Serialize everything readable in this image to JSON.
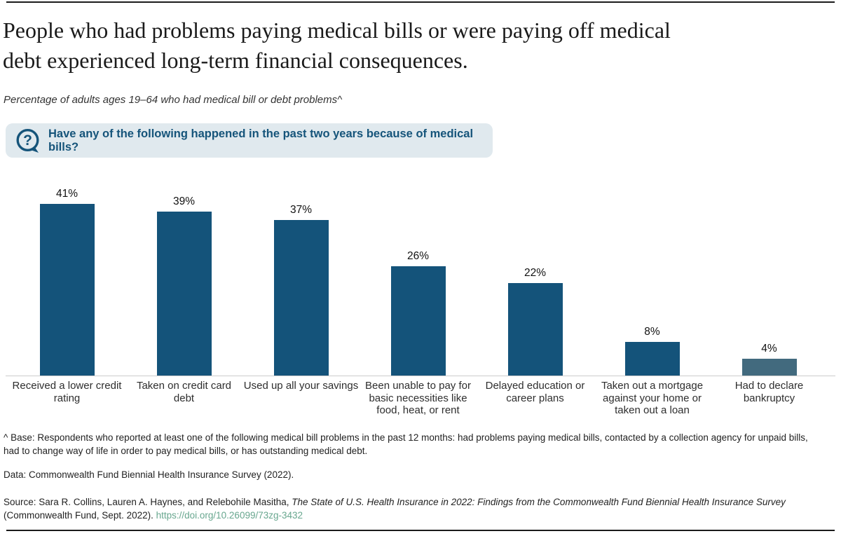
{
  "header": {
    "title_lines": [
      "People who had problems paying medical bills or were paying off medical",
      "debt experienced long-term financial consequences."
    ],
    "subtitle": "Percentage of adults ages 19–64 who had medical bill or debt problems^"
  },
  "banner": {
    "question": "Have any of the following happened in the past two years because of medical bills?",
    "icon": "question-speech-bubble-icon",
    "text_color": "#15547a",
    "background_color": "#e0e9ee"
  },
  "chart_data": {
    "type": "bar",
    "title": "",
    "xlabel": "",
    "ylabel": "",
    "categories": [
      "Received a lower credit rating",
      "Taken on credit card debt",
      "Used up all your savings",
      "Been unable to pay for basic necessities like food, heat, or rent",
      "Delayed education or career plans",
      "Taken out a mortgage against your home or taken out a loan",
      "Had to declare bankruptcy"
    ],
    "values": [
      41,
      39,
      37,
      26,
      22,
      8,
      4
    ],
    "value_labels": [
      "41%",
      "39%",
      "37%",
      "26%",
      "22%",
      "8%",
      "4%"
    ],
    "bar_colors": [
      "#14537a",
      "#14537a",
      "#14537a",
      "#14537a",
      "#14537a",
      "#14537a",
      "#426a7e"
    ],
    "ylim": [
      0,
      45
    ],
    "grid": false,
    "legend": false,
    "baseline_color": "#cccccc"
  },
  "footer": {
    "base_note": "^ Base: Respondents who reported at least one of the following medical bill problems in the past 12 months: had problems paying medical bills, contacted by a collection agency for unpaid bills, had to change way of life in order to pay medical bills, or has outstanding medical debt.",
    "data_note": "Data: Commonwealth Fund Biennial Health Insurance Survey (2022).",
    "source_prefix": "Source: Sara R. Collins, Lauren A. Haynes, and Relebohile Masitha, ",
    "source_title_italic": "The State of U.S. Health Insurance in 2022: Findings from the Commonwealth Fund Biennial Health Insurance Survey",
    "source_suffix": " (Commonwealth Fund, Sept. 2022). ",
    "link_text": "https://doi.org/10.26099/73zg-3432",
    "link_color": "#68a78f"
  }
}
